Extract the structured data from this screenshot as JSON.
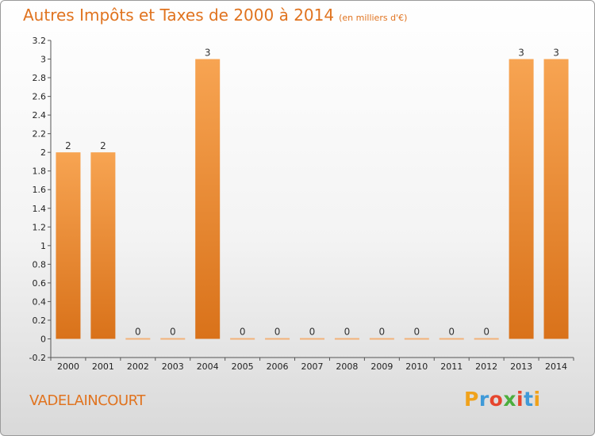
{
  "header": {
    "title": "Autres Impôts et Taxes de 2000 à 2014",
    "subtitle": "(en milliers d'€)"
  },
  "commune": "VADELAINCOURT",
  "logo": {
    "letters": [
      "P",
      "r",
      "o",
      "x",
      "i",
      "t",
      "i"
    ],
    "colors": [
      "#f0a21b",
      "#3f9ad8",
      "#e6462e",
      "#4cae3d",
      "#e6462e",
      "#3f9ad8",
      "#f0a21b"
    ]
  },
  "colors": {
    "bar_light": "#f7a452",
    "bar_dark": "#d9721a",
    "title": "#e0731f"
  },
  "chart_data": {
    "type": "bar",
    "categories": [
      "2000",
      "2001",
      "2002",
      "2003",
      "2004",
      "2005",
      "2006",
      "2007",
      "2008",
      "2009",
      "2010",
      "2011",
      "2012",
      "2013",
      "2014"
    ],
    "values": [
      2,
      2,
      0,
      0,
      3,
      0,
      0,
      0,
      0,
      0,
      0,
      0,
      0,
      3,
      3
    ],
    "value_labels": [
      "2",
      "2",
      "0",
      "0",
      "3",
      "0",
      "0",
      "0",
      "0",
      "0",
      "0",
      "0",
      "0",
      "3",
      "3"
    ],
    "ylim": [
      -0.2,
      3.2
    ],
    "yticks": [
      "3.2",
      "3",
      "2.8",
      "2.6",
      "2.4",
      "2.2",
      "2",
      "1.8",
      "1.6",
      "1.4",
      "1.2",
      "1",
      "0.8",
      "0.6",
      "0.4",
      "0.2",
      "0",
      "-0.2"
    ],
    "ytick_values": [
      3.2,
      3,
      2.8,
      2.6,
      2.4,
      2.2,
      2,
      1.8,
      1.6,
      1.4,
      1.2,
      1,
      0.8,
      0.6,
      0.4,
      0.2,
      0,
      -0.2
    ],
    "grid": false,
    "xlabel": "",
    "ylabel": ""
  }
}
